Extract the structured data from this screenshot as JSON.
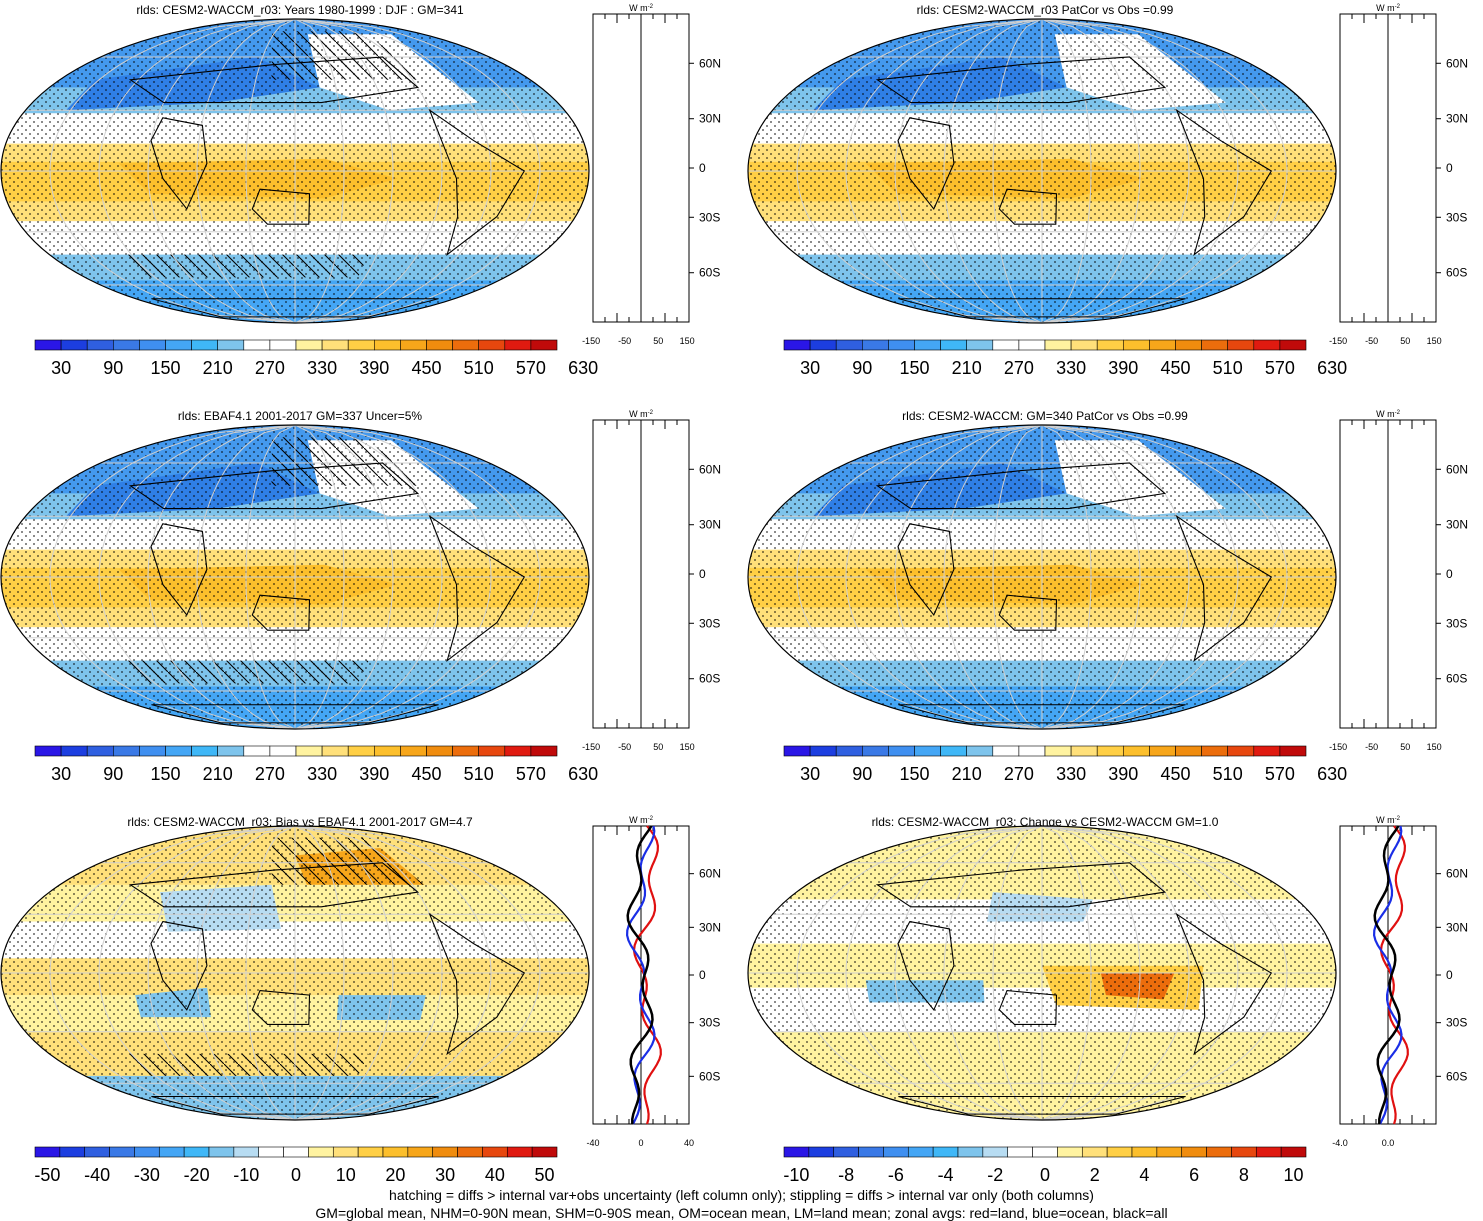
{
  "panels": [
    {
      "id": "p1",
      "title": "rlds: CESM2-WACCM_r03: Years 1980-1999 : DJF : GM=341",
      "colorbar": {
        "labels": [
          "30",
          "90",
          "150",
          "210",
          "270",
          "330",
          "390",
          "450",
          "510",
          "570",
          "630"
        ],
        "type": "absolute"
      },
      "zonal": {
        "unit": "W m",
        "unit_exp": "-2",
        "xticks": [
          "-150",
          "-50",
          "50",
          "150"
        ],
        "lat_labels": [
          "60N",
          "30N",
          "0",
          "30S",
          "60S"
        ],
        "lines": false
      }
    },
    {
      "id": "p2",
      "title": "rlds: CESM2-WACCM_r03 PatCor vs Obs =0.99",
      "colorbar": {
        "labels": [
          "30",
          "90",
          "150",
          "210",
          "270",
          "330",
          "390",
          "450",
          "510",
          "570",
          "630"
        ],
        "type": "absolute"
      },
      "zonal": {
        "unit": "W m",
        "unit_exp": "-2",
        "xticks": [
          "-150",
          "-50",
          "50",
          "150"
        ],
        "lat_labels": [
          "60N",
          "30N",
          "0",
          "30S",
          "60S"
        ],
        "lines": false
      }
    },
    {
      "id": "p3",
      "title": "rlds: EBAF4.1 2001-2017 GM=337 Uncer=5%",
      "colorbar": {
        "labels": [
          "30",
          "90",
          "150",
          "210",
          "270",
          "330",
          "390",
          "450",
          "510",
          "570",
          "630"
        ],
        "type": "absolute"
      },
      "zonal": {
        "unit": "W m",
        "unit_exp": "-2",
        "xticks": [
          "-150",
          "-50",
          "50",
          "150"
        ],
        "lat_labels": [
          "60N",
          "30N",
          "0",
          "30S",
          "60S"
        ],
        "lines": false
      }
    },
    {
      "id": "p4",
      "title": "rlds: CESM2-WACCM: GM=340 PatCor vs Obs =0.99",
      "colorbar": {
        "labels": [
          "30",
          "90",
          "150",
          "210",
          "270",
          "330",
          "390",
          "450",
          "510",
          "570",
          "630"
        ],
        "type": "absolute"
      },
      "zonal": {
        "unit": "W m",
        "unit_exp": "-2",
        "xticks": [
          "-150",
          "-50",
          "50",
          "150"
        ],
        "lat_labels": [
          "60N",
          "30N",
          "0",
          "30S",
          "60S"
        ],
        "lines": false
      }
    },
    {
      "id": "p5",
      "title": "rlds: CESM2-WACCM_r03: Bias vs EBAF4.1 2001-2017 GM=4.7",
      "colorbar": {
        "labels": [
          "-50",
          "-40",
          "-30",
          "-20",
          "-10",
          "0",
          "10",
          "20",
          "30",
          "40",
          "50"
        ],
        "type": "diff"
      },
      "zonal": {
        "unit": "W m",
        "unit_exp": "-2",
        "xticks": [
          "-40",
          "0",
          "40"
        ],
        "lat_labels": [
          "60N",
          "30N",
          "0",
          "30S",
          "60S"
        ],
        "lines": true
      }
    },
    {
      "id": "p6",
      "title": "rlds: CESM2-WACCM_r03: Change vs CESM2-WACCM GM=1.0",
      "colorbar": {
        "labels": [
          "-10",
          "-8",
          "-6",
          "-4",
          "-2",
          "0",
          "2",
          "4",
          "6",
          "8",
          "10"
        ],
        "type": "diff"
      },
      "zonal": {
        "unit": "W m",
        "unit_exp": "-2",
        "xticks": [
          "-4.0",
          "0.0"
        ],
        "lat_labels": [
          "60N",
          "30N",
          "0",
          "30S",
          "60S"
        ],
        "lines": true
      }
    }
  ],
  "palettes": {
    "absolute": [
      "#2a16e6",
      "#1c3ee0",
      "#2f5fe0",
      "#3a79e6",
      "#3f8ff0",
      "#44a6f5",
      "#3fb7f7",
      "#7ec4ec",
      "#ffffff",
      "#ffffff",
      "#fff3a0",
      "#ffe07a",
      "#ffcf45",
      "#fcbf2c",
      "#f7a61a",
      "#f08c0e",
      "#ec6d0c",
      "#e7470e",
      "#e01a10",
      "#c00a0a"
    ],
    "diff": [
      "#2a16e6",
      "#1c3ee0",
      "#2f5fe0",
      "#3a79e6",
      "#3f8ff0",
      "#44a6f5",
      "#3fb7f7",
      "#7ec4ec",
      "#b7dcf2",
      "#ffffff",
      "#ffffff",
      "#fff3a0",
      "#ffe07a",
      "#ffcf45",
      "#fcbf2c",
      "#f7a61a",
      "#f08c0e",
      "#ec6d0c",
      "#e7470e",
      "#e01a10",
      "#c00a0a"
    ]
  },
  "footer": {
    "line1": "hatching = diffs > internal var+obs uncertainty (left column only); stippling = diffs > internal var only (both columns)",
    "line2": "GM=global mean, NHM=0-90N mean, SHM=0-90S mean, OM=ocean mean, LM=land mean; zonal avgs: red=land, blue=ocean, black=all"
  }
}
